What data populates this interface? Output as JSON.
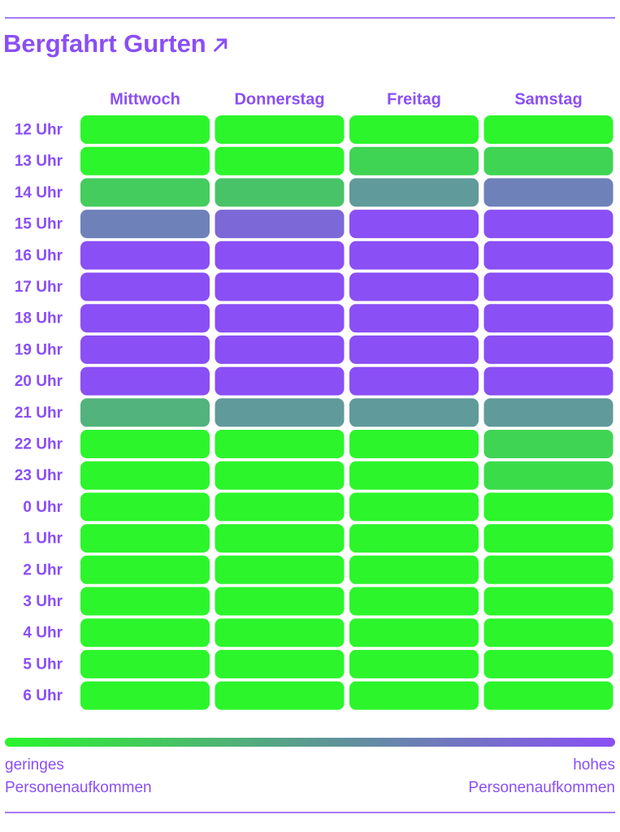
{
  "chart_data": {
    "type": "heatmap",
    "title": "Bergfahrt Gurten",
    "x_categories": [
      "Mittwoch",
      "Donnerstag",
      "Freitag",
      "Samstag"
    ],
    "y_categories": [
      "12 Uhr",
      "13 Uhr",
      "14 Uhr",
      "15 Uhr",
      "16 Uhr",
      "17 Uhr",
      "18 Uhr",
      "19 Uhr",
      "20 Uhr",
      "21 Uhr",
      "22 Uhr",
      "23 Uhr",
      "0 Uhr",
      "1 Uhr",
      "2 Uhr",
      "3 Uhr",
      "4 Uhr",
      "5 Uhr",
      "6 Uhr"
    ],
    "values": [
      [
        0,
        0,
        0,
        0
      ],
      [
        0,
        0,
        0.2,
        0.2
      ],
      [
        0.25,
        0.3,
        0.55,
        0.7
      ],
      [
        0.7,
        0.85,
        1,
        1
      ],
      [
        1,
        1,
        1,
        1
      ],
      [
        1,
        1,
        1,
        1
      ],
      [
        1,
        1,
        1,
        1
      ],
      [
        1,
        1,
        1,
        1
      ],
      [
        1,
        1,
        1,
        1
      ],
      [
        0.4,
        0.55,
        0.55,
        0.55
      ],
      [
        0,
        0,
        0,
        0.2
      ],
      [
        0,
        0,
        0,
        0.15
      ],
      [
        0,
        0,
        0,
        0
      ],
      [
        0,
        0,
        0,
        0
      ],
      [
        0,
        0,
        0,
        0
      ],
      [
        0,
        0,
        0,
        0
      ],
      [
        0,
        0,
        0,
        0
      ],
      [
        0,
        0,
        0,
        0
      ],
      [
        0,
        0,
        0,
        0
      ]
    ],
    "colors": [
      "#2cf52c",
      "#8a4ff5"
    ],
    "legend": {
      "low": [
        "geringes",
        "Personenaufkommen"
      ],
      "high": [
        "hohes",
        "Personenaufkommen"
      ]
    }
  }
}
